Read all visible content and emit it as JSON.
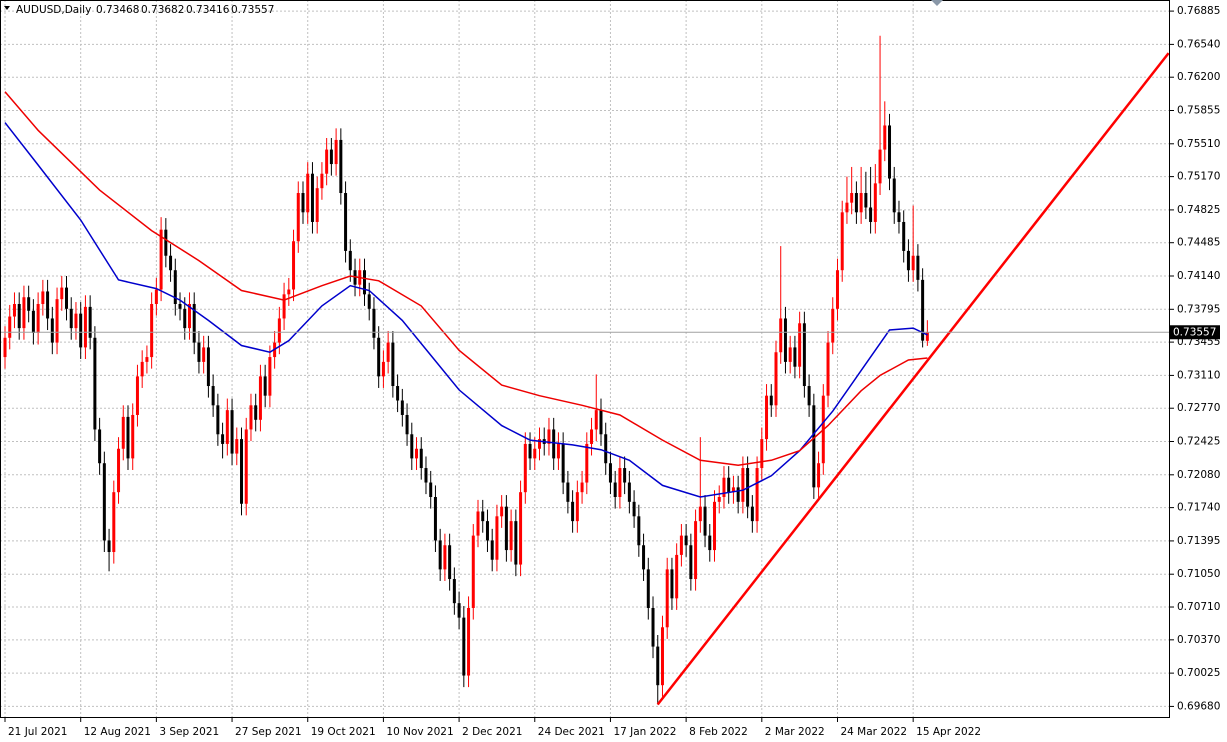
{
  "chart_data": {
    "type": "candlestick",
    "title": "AUDUSD,Daily",
    "up_color": "#ff0000",
    "down_color": "#000000",
    "grid": true,
    "xlim": [
      -1.06,
      246.3
    ],
    "ylim": [
      0.6956,
      0.77
    ],
    "yticks": [
      0.76885,
      {
        "value": 0.7654,
        "label": "0.76540"
      },
      {
        "value": 0.762,
        "label": "0.76200"
      },
      0.75855,
      {
        "value": 0.7551,
        "label": "0.75510"
      },
      {
        "value": 0.7517,
        "label": "0.75170"
      },
      0.74825,
      0.74485,
      {
        "value": 0.7414,
        "label": "0.74140"
      },
      0.73795,
      0.73455,
      {
        "value": 0.7311,
        "label": "0.73110"
      },
      {
        "value": 0.7277,
        "label": "0.72770"
      },
      0.72425,
      {
        "value": 0.7208,
        "label": "0.72080"
      },
      {
        "value": 0.7174,
        "label": "0.71740"
      },
      0.71395,
      {
        "value": 0.7105,
        "label": "0.71050"
      },
      {
        "value": 0.7071,
        "label": "0.70710"
      },
      {
        "value": 0.7037,
        "label": "0.70370"
      },
      0.70025,
      {
        "value": 0.6968,
        "label": "0.69680"
      }
    ],
    "xticks": [
      {
        "value": 0,
        "label": "21 Jul 2021"
      },
      {
        "value": 16,
        "label": "12 Aug 2021"
      },
      {
        "value": 32,
        "label": "3 Sep 2021"
      },
      {
        "value": 48,
        "label": "27 Sep 2021"
      },
      {
        "value": 64,
        "label": "19 Oct 2021"
      },
      {
        "value": 80,
        "label": "10 Nov 2021"
      },
      {
        "value": 96,
        "label": "2 Dec 2021"
      },
      {
        "value": 112,
        "label": "24 Dec 2021"
      },
      {
        "value": 128,
        "label": "17 Jan 2022"
      },
      {
        "value": 144,
        "label": "8 Feb 2022"
      },
      {
        "value": 160,
        "label": "2 Mar 2022"
      },
      {
        "value": 176,
        "label": "24 Mar 2022"
      },
      {
        "value": 192,
        "label": "15 Apr 2022"
      }
    ],
    "ohlc": [
      [
        0.733,
        0.7362,
        0.7318,
        0.735
      ],
      [
        0.735,
        0.7384,
        0.7338,
        0.7372
      ],
      [
        0.7372,
        0.7397,
        0.736,
        0.7385
      ],
      [
        0.7385,
        0.7397,
        0.7348,
        0.736
      ],
      [
        0.736,
        0.7404,
        0.7348,
        0.7392
      ],
      [
        0.7392,
        0.7404,
        0.7366,
        0.7378
      ],
      [
        0.7378,
        0.739,
        0.7343,
        0.7355
      ],
      [
        0.7355,
        0.7397,
        0.7343,
        0.7385
      ],
      [
        0.7385,
        0.741,
        0.7373,
        0.7398
      ],
      [
        0.7398,
        0.741,
        0.7358,
        0.737
      ],
      [
        0.737,
        0.7382,
        0.7333,
        0.7345
      ],
      [
        0.7345,
        0.7402,
        0.7333,
        0.739
      ],
      [
        0.739,
        0.7414,
        0.7378,
        0.7402
      ],
      [
        0.7402,
        0.7414,
        0.7368,
        0.738
      ],
      [
        0.738,
        0.7392,
        0.7348,
        0.736
      ],
      [
        0.736,
        0.7387,
        0.7348,
        0.7375
      ],
      [
        0.7375,
        0.7387,
        0.7328,
        0.734
      ],
      [
        0.734,
        0.7394,
        0.7328,
        0.7382
      ],
      [
        0.7382,
        0.7394,
        0.7338,
        0.735
      ],
      [
        0.735,
        0.7362,
        0.7243,
        0.7255
      ],
      [
        0.7255,
        0.7267,
        0.7208,
        0.722
      ],
      [
        0.722,
        0.7232,
        0.7128,
        0.714
      ],
      [
        0.714,
        0.7152,
        0.7108,
        0.7128
      ],
      [
        0.7128,
        0.7202,
        0.7116,
        0.719
      ],
      [
        0.719,
        0.7247,
        0.7178,
        0.7235
      ],
      [
        0.7235,
        0.728,
        0.7223,
        0.7268
      ],
      [
        0.7268,
        0.728,
        0.7213,
        0.7225
      ],
      [
        0.7225,
        0.7282,
        0.7213,
        0.727
      ],
      [
        0.727,
        0.7322,
        0.7258,
        0.731
      ],
      [
        0.731,
        0.7337,
        0.7298,
        0.7325
      ],
      [
        0.7325,
        0.7342,
        0.7313,
        0.733
      ],
      [
        0.733,
        0.7397,
        0.7318,
        0.7385
      ],
      [
        0.7385,
        0.7412,
        0.7373,
        0.74
      ],
      [
        0.74,
        0.7475,
        0.7388,
        0.7462
      ],
      [
        0.7462,
        0.7474,
        0.7423,
        0.7435
      ],
      [
        0.7435,
        0.7447,
        0.7408,
        0.742
      ],
      [
        0.742,
        0.7432,
        0.7373,
        0.7385
      ],
      [
        0.7385,
        0.7397,
        0.7368,
        0.738
      ],
      [
        0.738,
        0.7392,
        0.7348,
        0.736
      ],
      [
        0.736,
        0.7397,
        0.7348,
        0.7385
      ],
      [
        0.7385,
        0.7397,
        0.7333,
        0.7345
      ],
      [
        0.7345,
        0.7357,
        0.7313,
        0.7325
      ],
      [
        0.7325,
        0.7352,
        0.7313,
        0.734
      ],
      [
        0.734,
        0.7352,
        0.7288,
        0.73
      ],
      [
        0.73,
        0.7312,
        0.7268,
        0.728
      ],
      [
        0.728,
        0.7292,
        0.7238,
        0.725
      ],
      [
        0.725,
        0.7262,
        0.7225,
        0.724
      ],
      [
        0.724,
        0.7287,
        0.7228,
        0.7275
      ],
      [
        0.7275,
        0.7287,
        0.7218,
        0.723
      ],
      [
        0.723,
        0.7257,
        0.7218,
        0.7245
      ],
      [
        0.7245,
        0.7257,
        0.7166,
        0.7178
      ],
      [
        0.7178,
        0.7267,
        0.7166,
        0.7255
      ],
      [
        0.7255,
        0.7292,
        0.7243,
        0.728
      ],
      [
        0.728,
        0.7292,
        0.7253,
        0.7265
      ],
      [
        0.7265,
        0.7322,
        0.7253,
        0.731
      ],
      [
        0.731,
        0.7322,
        0.7278,
        0.729
      ],
      [
        0.729,
        0.7342,
        0.7278,
        0.733
      ],
      [
        0.733,
        0.7357,
        0.7318,
        0.7345
      ],
      [
        0.7345,
        0.7382,
        0.7333,
        0.737
      ],
      [
        0.737,
        0.7407,
        0.7358,
        0.7395
      ],
      [
        0.7395,
        0.7412,
        0.7383,
        0.74
      ],
      [
        0.74,
        0.7462,
        0.7388,
        0.745
      ],
      [
        0.745,
        0.7512,
        0.7438,
        0.75
      ],
      [
        0.75,
        0.7512,
        0.7468,
        0.748
      ],
      [
        0.748,
        0.7532,
        0.7468,
        0.752
      ],
      [
        0.752,
        0.7532,
        0.7458,
        0.747
      ],
      [
        0.747,
        0.7517,
        0.7458,
        0.7505
      ],
      [
        0.7505,
        0.7532,
        0.7493,
        0.752
      ],
      [
        0.752,
        0.7557,
        0.7508,
        0.7545
      ],
      [
        0.7545,
        0.7557,
        0.7518,
        0.753
      ],
      [
        0.753,
        0.7567,
        0.7518,
        0.7555
      ],
      [
        0.7555,
        0.7567,
        0.7488,
        0.75
      ],
      [
        0.75,
        0.7512,
        0.7428,
        0.744
      ],
      [
        0.744,
        0.7452,
        0.7408,
        0.742
      ],
      [
        0.742,
        0.7432,
        0.7393,
        0.7405
      ],
      [
        0.7405,
        0.7432,
        0.7393,
        0.742
      ],
      [
        0.742,
        0.7432,
        0.7383,
        0.7395
      ],
      [
        0.7395,
        0.7407,
        0.7368,
        0.738
      ],
      [
        0.738,
        0.7392,
        0.7338,
        0.735
      ],
      [
        0.735,
        0.7362,
        0.7298,
        0.731
      ],
      [
        0.731,
        0.7337,
        0.7298,
        0.7325
      ],
      [
        0.7325,
        0.7357,
        0.7313,
        0.7345
      ],
      [
        0.7345,
        0.7357,
        0.7288,
        0.73
      ],
      [
        0.73,
        0.7312,
        0.7273,
        0.7285
      ],
      [
        0.7285,
        0.7297,
        0.7258,
        0.727
      ],
      [
        0.727,
        0.7282,
        0.7238,
        0.725
      ],
      [
        0.725,
        0.7262,
        0.7213,
        0.7225
      ],
      [
        0.7225,
        0.7247,
        0.7213,
        0.7235
      ],
      [
        0.7235,
        0.7247,
        0.7203,
        0.7215
      ],
      [
        0.7215,
        0.7227,
        0.7188,
        0.72
      ],
      [
        0.72,
        0.7212,
        0.7173,
        0.7185
      ],
      [
        0.7185,
        0.7197,
        0.7128,
        0.714
      ],
      [
        0.714,
        0.7152,
        0.7098,
        0.711
      ],
      [
        0.711,
        0.7147,
        0.7098,
        0.7135
      ],
      [
        0.7135,
        0.7147,
        0.7088,
        0.71
      ],
      [
        0.71,
        0.7112,
        0.7063,
        0.7075
      ],
      [
        0.7075,
        0.7087,
        0.7048,
        0.706
      ],
      [
        0.706,
        0.7072,
        0.6988,
        0.7
      ],
      [
        0.7,
        0.7082,
        0.6988,
        0.707
      ],
      [
        0.707,
        0.7157,
        0.7058,
        0.7145
      ],
      [
        0.7145,
        0.7182,
        0.7133,
        0.717
      ],
      [
        0.717,
        0.7182,
        0.7148,
        0.716
      ],
      [
        0.716,
        0.7172,
        0.7128,
        0.714
      ],
      [
        0.714,
        0.7152,
        0.7108,
        0.712
      ],
      [
        0.712,
        0.7177,
        0.7108,
        0.7165
      ],
      [
        0.7165,
        0.7187,
        0.7153,
        0.7175
      ],
      [
        0.7175,
        0.7187,
        0.7118,
        0.713
      ],
      [
        0.713,
        0.7172,
        0.7118,
        0.716
      ],
      [
        0.716,
        0.7172,
        0.7103,
        0.7115
      ],
      [
        0.7115,
        0.7202,
        0.7103,
        0.719
      ],
      [
        0.719,
        0.7252,
        0.7178,
        0.724
      ],
      [
        0.724,
        0.7252,
        0.7213,
        0.7225
      ],
      [
        0.7225,
        0.7247,
        0.7213,
        0.7235
      ],
      [
        0.7235,
        0.7257,
        0.7223,
        0.7245
      ],
      [
        0.7245,
        0.7257,
        0.7228,
        0.724
      ],
      [
        0.724,
        0.7267,
        0.7228,
        0.7255
      ],
      [
        0.7255,
        0.7267,
        0.7213,
        0.7225
      ],
      [
        0.7225,
        0.7252,
        0.7213,
        0.724
      ],
      [
        0.724,
        0.7252,
        0.7188,
        0.72
      ],
      [
        0.72,
        0.7212,
        0.7168,
        0.718
      ],
      [
        0.718,
        0.7192,
        0.7148,
        0.716
      ],
      [
        0.716,
        0.7202,
        0.7148,
        0.719
      ],
      [
        0.719,
        0.7212,
        0.7178,
        0.72
      ],
      [
        0.72,
        0.7252,
        0.7188,
        0.724
      ],
      [
        0.724,
        0.7267,
        0.7228,
        0.7255
      ],
      [
        0.7255,
        0.7312,
        0.7243,
        0.7275
      ],
      [
        0.7275,
        0.7287,
        0.7238,
        0.725
      ],
      [
        0.725,
        0.7262,
        0.7208,
        0.722
      ],
      [
        0.722,
        0.7232,
        0.7188,
        0.72
      ],
      [
        0.72,
        0.7212,
        0.7173,
        0.7185
      ],
      [
        0.7185,
        0.7227,
        0.7173,
        0.7215
      ],
      [
        0.7215,
        0.7227,
        0.7188,
        0.72
      ],
      [
        0.72,
        0.7212,
        0.7168,
        0.718
      ],
      [
        0.718,
        0.7192,
        0.7153,
        0.7165
      ],
      [
        0.7165,
        0.7177,
        0.7123,
        0.7135
      ],
      [
        0.7135,
        0.7147,
        0.7098,
        0.711
      ],
      [
        0.711,
        0.7122,
        0.7058,
        0.707
      ],
      [
        0.707,
        0.7082,
        0.7018,
        0.703
      ],
      [
        0.703,
        0.7042,
        0.697,
        0.699
      ],
      [
        0.699,
        0.7062,
        0.6978,
        0.705
      ],
      [
        0.705,
        0.7122,
        0.7038,
        0.711
      ],
      [
        0.711,
        0.7122,
        0.7068,
        0.708
      ],
      [
        0.708,
        0.7137,
        0.7068,
        0.7125
      ],
      [
        0.7125,
        0.7157,
        0.7113,
        0.7145
      ],
      [
        0.7145,
        0.7157,
        0.7123,
        0.7135
      ],
      [
        0.7135,
        0.7147,
        0.7088,
        0.71
      ],
      [
        0.71,
        0.7172,
        0.7088,
        0.716
      ],
      [
        0.716,
        0.7247,
        0.7148,
        0.7175
      ],
      [
        0.7175,
        0.7187,
        0.7133,
        0.7145
      ],
      [
        0.7145,
        0.7157,
        0.7118,
        0.713
      ],
      [
        0.713,
        0.7192,
        0.7118,
        0.718
      ],
      [
        0.718,
        0.7197,
        0.7168,
        0.7185
      ],
      [
        0.7185,
        0.7217,
        0.7173,
        0.7205
      ],
      [
        0.7205,
        0.7217,
        0.7178,
        0.719
      ],
      [
        0.719,
        0.7207,
        0.7178,
        0.7195
      ],
      [
        0.7195,
        0.7207,
        0.7168,
        0.718
      ],
      [
        0.718,
        0.7227,
        0.7168,
        0.7215
      ],
      [
        0.7215,
        0.7227,
        0.7163,
        0.7175
      ],
      [
        0.7175,
        0.7187,
        0.7148,
        0.716
      ],
      [
        0.716,
        0.7227,
        0.7148,
        0.7215
      ],
      [
        0.7215,
        0.7257,
        0.7203,
        0.7245
      ],
      [
        0.7245,
        0.7302,
        0.7233,
        0.729
      ],
      [
        0.729,
        0.7302,
        0.7268,
        0.728
      ],
      [
        0.728,
        0.7347,
        0.7268,
        0.7335
      ],
      [
        0.7335,
        0.7445,
        0.7323,
        0.737
      ],
      [
        0.737,
        0.7382,
        0.7313,
        0.7325
      ],
      [
        0.7325,
        0.7352,
        0.7313,
        0.734
      ],
      [
        0.734,
        0.7352,
        0.7308,
        0.732
      ],
      [
        0.732,
        0.7377,
        0.7308,
        0.7365
      ],
      [
        0.7365,
        0.7377,
        0.7288,
        0.73
      ],
      [
        0.73,
        0.7312,
        0.7268,
        0.728
      ],
      [
        0.728,
        0.7292,
        0.7183,
        0.7195
      ],
      [
        0.7195,
        0.7232,
        0.7183,
        0.722
      ],
      [
        0.722,
        0.7302,
        0.7208,
        0.729
      ],
      [
        0.729,
        0.7357,
        0.7278,
        0.7345
      ],
      [
        0.7345,
        0.7392,
        0.7333,
        0.738
      ],
      [
        0.738,
        0.7432,
        0.7368,
        0.742
      ],
      [
        0.742,
        0.7492,
        0.7408,
        0.748
      ],
      [
        0.748,
        0.7517,
        0.7468,
        0.749
      ],
      [
        0.749,
        0.7527,
        0.7478,
        0.75
      ],
      [
        0.75,
        0.7512,
        0.7468,
        0.748
      ],
      [
        0.748,
        0.7527,
        0.7468,
        0.75
      ],
      [
        0.75,
        0.7522,
        0.7473,
        0.7485
      ],
      [
        0.7485,
        0.7527,
        0.7458,
        0.747
      ],
      [
        0.747,
        0.753,
        0.7458,
        0.751
      ],
      [
        0.751,
        0.7663,
        0.7498,
        0.7545
      ],
      [
        0.7545,
        0.7595,
        0.7533,
        0.757
      ],
      [
        0.757,
        0.7582,
        0.7503,
        0.7515
      ],
      [
        0.7515,
        0.7527,
        0.7468,
        0.748
      ],
      [
        0.748,
        0.7492,
        0.7458,
        0.747
      ],
      [
        0.747,
        0.7482,
        0.7428,
        0.744
      ],
      [
        0.744,
        0.7452,
        0.7408,
        0.742
      ],
      [
        0.742,
        0.7487,
        0.7408,
        0.7435
      ],
      [
        0.7435,
        0.7447,
        0.7398,
        0.741
      ],
      [
        0.741,
        0.7422,
        0.734,
        0.7347
      ],
      [
        0.73468,
        0.73682,
        0.73416,
        0.73557
      ]
    ],
    "lines": [
      {
        "color": "#0000cc",
        "x": [
          0,
          7,
          16,
          24,
          32,
          37,
          43,
          50,
          56,
          60,
          67,
          73,
          77,
          84,
          90,
          96,
          105,
          111,
          120,
          126,
          132,
          139,
          147,
          156,
          162,
          168,
          175,
          181,
          187,
          192,
          195
        ],
        "values": [
          0.7573,
          0.7529,
          0.7472,
          0.741,
          0.7401,
          0.7389,
          0.7368,
          0.7342,
          0.7335,
          0.7347,
          0.7383,
          0.7404,
          0.7399,
          0.7368,
          0.7332,
          0.7296,
          0.7259,
          0.7244,
          0.7239,
          0.7234,
          0.7223,
          0.7197,
          0.7185,
          0.7192,
          0.7207,
          0.7233,
          0.7274,
          0.7316,
          0.7358,
          0.736,
          0.7353
        ]
      },
      {
        "color": "#ee0000",
        "x": [
          0,
          7,
          20,
          31,
          41,
          50,
          59,
          67,
          73,
          79,
          88,
          96,
          105,
          113,
          122,
          130,
          139,
          147,
          155,
          162,
          168,
          174,
          181,
          185,
          191,
          195
        ],
        "values": [
          0.7605,
          0.7565,
          0.7503,
          0.7461,
          0.743,
          0.7399,
          0.7389,
          0.7404,
          0.7414,
          0.7409,
          0.7383,
          0.7337,
          0.7301,
          0.729,
          0.728,
          0.727,
          0.7244,
          0.7223,
          0.7218,
          0.7223,
          0.7233,
          0.7259,
          0.7295,
          0.7311,
          0.7327,
          0.7329
        ]
      },
      {
        "color": "#ff0000",
        "x": [
          138,
          246
        ],
        "values": [
          0.697,
          0.7645
        ]
      }
    ]
  }
}
